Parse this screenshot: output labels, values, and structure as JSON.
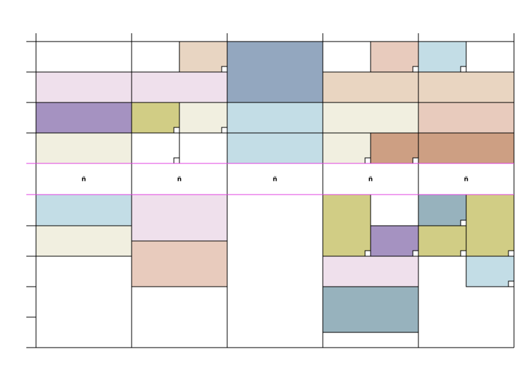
{
  "cells": [
    "ñ",
    "ñ",
    "ñ",
    "ñ",
    "ñ"
  ]
}
